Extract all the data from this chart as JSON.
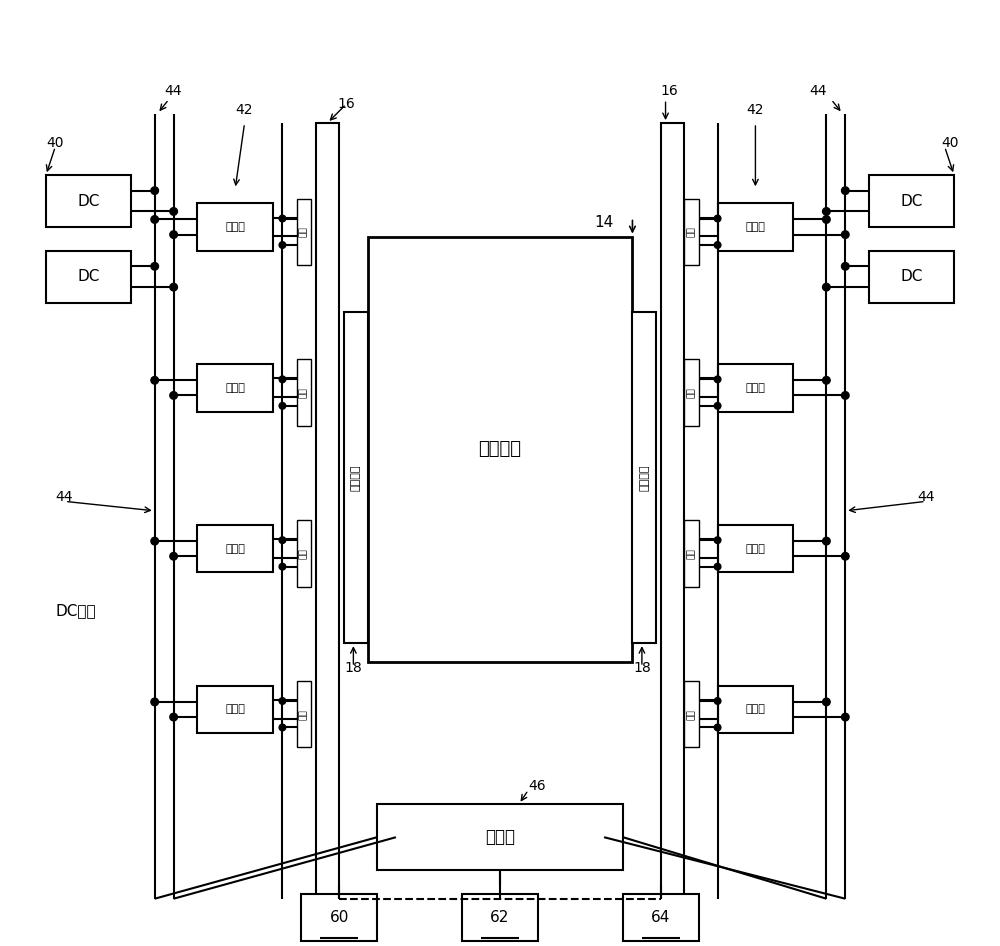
{
  "bg_color": "#ffffff",
  "line_color": "#000000",
  "box_color": "#ffffff",
  "figsize": [
    10.0,
    9.46
  ],
  "dpi": 100,
  "labels": {
    "dc_bus": "DC母线",
    "elevator_car": "电梯轿廂",
    "magnet_array_left": "磁体阵列",
    "magnet_array_right": "磁体阵列",
    "stator_label": "定子",
    "driver_label": "驱动器",
    "controller_label": "控制器",
    "num_40": "40",
    "num_42": "42",
    "num_44_left_top": "44",
    "num_44_left_bottom": "44",
    "num_44_right_top": "44",
    "num_44_right_bottom": "44",
    "num_16_left": "16",
    "num_16_right": "16",
    "num_14": "14",
    "num_18_left": "18",
    "num_18_right": "18",
    "num_46": "46",
    "num_60": "60",
    "num_62": "62",
    "num_64": "64"
  }
}
